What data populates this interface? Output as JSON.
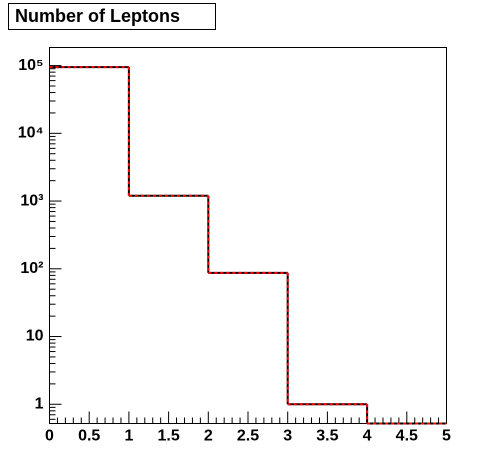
{
  "chart_data": {
    "type": "histogram",
    "title": "Number of Leptons",
    "bins": [
      0,
      1,
      2,
      3,
      4,
      5
    ],
    "series": [
      {
        "color": "#000000",
        "dash": false,
        "values": [
          95000,
          1200,
          87,
          1,
          0
        ]
      },
      {
        "color": "#ff0000",
        "dash": true,
        "values": [
          95000,
          1200,
          87,
          1,
          0
        ]
      }
    ],
    "xlim": [
      0,
      5
    ],
    "xticks": [
      0,
      0.5,
      1,
      1.5,
      2,
      2.5,
      3,
      3.5,
      4,
      4.5,
      5
    ],
    "ylim": [
      0.52,
      185000
    ],
    "log_y": true,
    "yticks": [
      1,
      10,
      {
        "value": 100,
        "label": "10²"
      },
      {
        "value": 1000,
        "label": "10³"
      },
      {
        "value": 10000,
        "label": "10⁴"
      },
      {
        "value": 100000,
        "label": "10⁵"
      }
    ],
    "grid": false
  }
}
